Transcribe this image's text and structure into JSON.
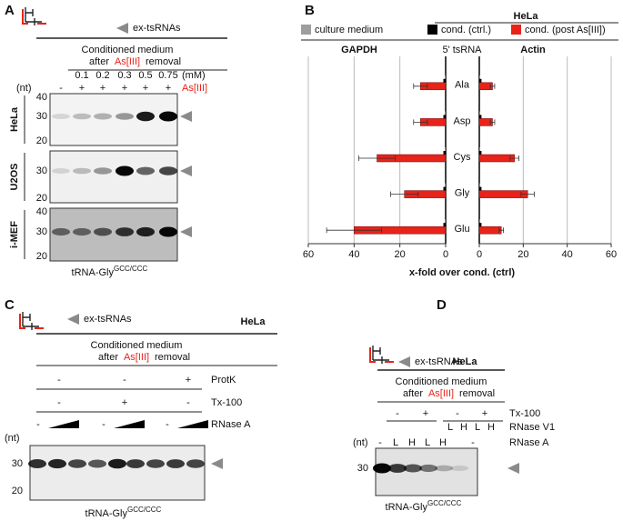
{
  "panel_labels": [
    "A",
    "B",
    "C",
    "D"
  ],
  "panel_a": {
    "legend": "ex-tsRNAs",
    "medium": {
      "line1": "Conditioned medium",
      "after": "after",
      "agent": "As[III]",
      "removal": "removal"
    },
    "concentrations": [
      0.1,
      0.2,
      0.3,
      0.5,
      0.75
    ],
    "unit": "(mM)",
    "nt": "(nt)",
    "treatment": [
      "-",
      "+",
      "+",
      "+",
      "+",
      "+"
    ],
    "agent": "As[III]",
    "gels": [
      {
        "name": "HeLa",
        "markers": [
          40,
          30,
          20
        ]
      },
      {
        "name": "U2OS",
        "markers": [
          30,
          20
        ]
      },
      {
        "name": "i-MEF",
        "markers": [
          40,
          30,
          20
        ]
      }
    ],
    "probe": {
      "name": "tRNA-Gly",
      "sup": "GCC/CCC"
    }
  },
  "panel_c": {
    "legend": "ex-tsRNAs",
    "cell": "HeLa",
    "medium": {
      "line1": "Conditioned medium",
      "after": "after",
      "agent": "As[III]",
      "removal": "removal"
    },
    "rows": [
      {
        "label": "ProtK",
        "marks": [
          "-",
          "-",
          "+"
        ]
      },
      {
        "label": "Tx-100",
        "marks": [
          "-",
          "+",
          "-"
        ]
      },
      {
        "label": "RNase A",
        "marks": [
          "-",
          "-",
          "-"
        ]
      }
    ],
    "nt": "(nt)",
    "markers": [
      30,
      20
    ],
    "probe": {
      "name": "tRNA-Gly",
      "sup": "GCC/CCC"
    }
  },
  "panel_d": {
    "legend": "ex-tsRNAs",
    "cell": "HeLa",
    "medium": {
      "line1": "Conditioned medium",
      "after": "after",
      "agent": "As[III]",
      "removal": "removal"
    },
    "rows": [
      {
        "label": "Tx-100",
        "marks": [
          "-",
          "+",
          "-",
          "+"
        ]
      },
      {
        "label": "RNase V1",
        "marks": [
          "L",
          "H",
          "L",
          "H"
        ]
      },
      {
        "label": "RNase A",
        "marks": [
          "-",
          "L",
          "H",
          "L",
          "H",
          "-"
        ]
      }
    ],
    "nt": "(nt)",
    "markers": [
      30
    ],
    "probe": {
      "name": "tRNA-Gly",
      "sup": "GCC/CCC"
    }
  },
  "chart_data": [
    {
      "type": "bar",
      "orientation": "horizontal",
      "header": "HeLa",
      "title": "GAPDH",
      "category_label": "5' tsRNA",
      "xlabel": "x-fold over cond. (ctrl)",
      "categories": [
        "Ala",
        "Asp",
        "Cys",
        "Gly",
        "Glu"
      ],
      "series": [
        {
          "name": "culture medium",
          "color": "#9e9e9e",
          "values": [
            0.2,
            0.2,
            0.2,
            0.2,
            0.2
          ]
        },
        {
          "name": "cond. (ctrl.)",
          "color": "#000000",
          "values": [
            1,
            1,
            1,
            1,
            1
          ]
        },
        {
          "name": "cond. (post As[III])",
          "color": "#e8231a",
          "values": [
            11,
            11,
            30,
            18,
            40
          ],
          "errors": [
            3,
            3,
            8,
            6,
            12
          ]
        }
      ],
      "xlim": [
        60,
        0
      ],
      "xticks": [
        0,
        20,
        40,
        60
      ],
      "grid": true
    },
    {
      "type": "bar",
      "orientation": "horizontal",
      "title": "Actin",
      "series": [
        {
          "color": "#9e9e9e",
          "values": [
            0.2,
            0.2,
            0.2,
            0.2,
            0.2
          ]
        },
        {
          "color": "#000000",
          "values": [
            1,
            1,
            1,
            1,
            1
          ]
        },
        {
          "color": "#e8231a",
          "values": [
            6,
            6,
            16,
            22,
            10
          ],
          "errors": [
            1,
            1,
            2,
            3,
            1
          ]
        }
      ],
      "xlim": [
        0,
        60
      ],
      "xticks": [
        0,
        20,
        40,
        60
      ],
      "grid": true
    }
  ]
}
